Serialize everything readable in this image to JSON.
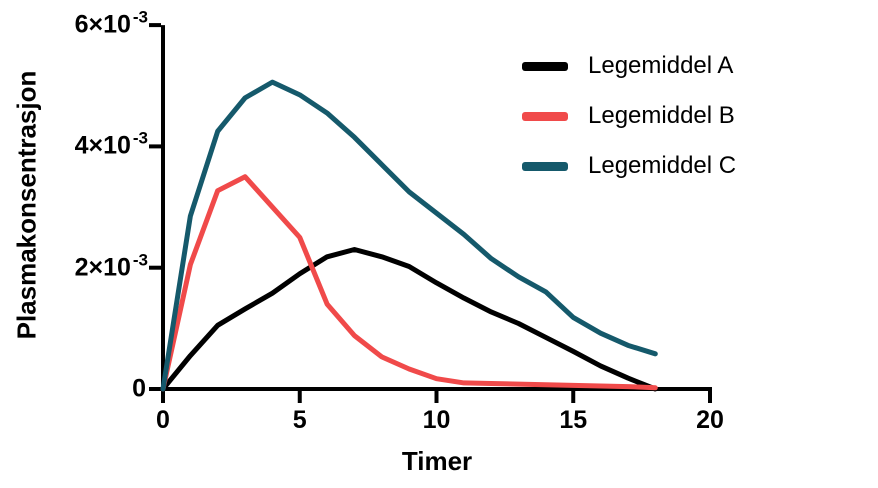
{
  "chart_data": {
    "type": "line",
    "title": "",
    "xlabel": "Timer",
    "ylabel": "Plasmakonsentrasjon",
    "grid": false,
    "legend_position": "top-right",
    "axis_color": "#000000",
    "xlim": [
      0,
      20
    ],
    "xticks": [
      0,
      5,
      10,
      15,
      20
    ],
    "y_unit": "×10⁻³",
    "ylim_e3": [
      0,
      6
    ],
    "yticks": [
      {
        "value_e3": 0,
        "base": "0",
        "exp": "",
        "label": "0"
      },
      {
        "value_e3": 2,
        "base": "2×10",
        "exp": "-3",
        "label": "2×10⁻³"
      },
      {
        "value_e3": 4,
        "base": "4×10",
        "exp": "-3",
        "label": "4×10⁻³"
      },
      {
        "value_e3": 6,
        "base": "6×10",
        "exp": "-3",
        "label": "6×10⁻³"
      }
    ],
    "x": [
      0,
      1,
      2,
      3,
      4,
      5,
      6,
      7,
      8,
      9,
      10,
      11,
      12,
      13,
      14,
      15,
      16,
      17,
      18
    ],
    "series": [
      {
        "name": "Legemiddel A",
        "color": "#000000",
        "values_e3": [
          0,
          0.55,
          1.05,
          1.32,
          1.58,
          1.9,
          2.18,
          2.3,
          2.18,
          2.02,
          1.75,
          1.5,
          1.27,
          1.08,
          0.85,
          0.62,
          0.38,
          0.18,
          0
        ]
      },
      {
        "name": "Legemiddel B",
        "color": "#F04A4A",
        "values_e3": [
          0,
          2.05,
          3.27,
          3.5,
          3.0,
          2.5,
          1.4,
          0.88,
          0.53,
          0.33,
          0.17,
          0.1,
          0.09,
          0.08,
          0.07,
          0.06,
          0.05,
          0.04,
          0.02
        ]
      },
      {
        "name": "Legemiddel C",
        "color": "#15596B",
        "values_e3": [
          0,
          2.85,
          4.25,
          4.8,
          5.06,
          4.85,
          4.55,
          4.15,
          3.7,
          3.25,
          2.9,
          2.55,
          2.15,
          1.85,
          1.6,
          1.18,
          0.92,
          0.72,
          0.58
        ]
      }
    ]
  }
}
